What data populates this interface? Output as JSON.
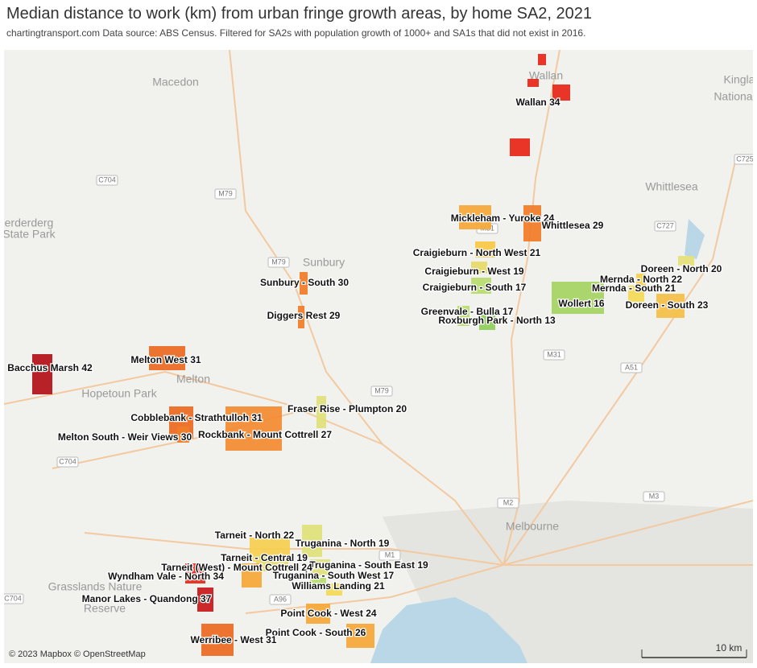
{
  "header": {
    "title": "Median distance to work (km) from urban fringe growth areas, by home SA2, 2021",
    "subtitle": "chartingtransport.com  Data source: ABS Census. Filtered for SA2s with population growth of 1000+ and SA1s that did not exist in 2016."
  },
  "map": {
    "areas": [
      {
        "label": "Wallan 34",
        "color": "#e8291c"
      },
      {
        "label": "Mickleham - Yuroke 24",
        "color": "#f6a93b"
      },
      {
        "label": "Whittlesea 29",
        "color": "#f07d2a"
      },
      {
        "label": "Craigieburn - North West 21",
        "color": "#f9c84a"
      },
      {
        "label": "Craigieburn - West 19",
        "color": "#e6d96a"
      },
      {
        "label": "Craigieburn - South 17",
        "color": "#b9dc70"
      },
      {
        "label": "Greenvale - Bulla 17",
        "color": "#b9dc70"
      },
      {
        "label": "Roxburgh Park - North 13",
        "color": "#8fcf5e"
      },
      {
        "label": "Wollert 16",
        "color": "#a6d465"
      },
      {
        "label": "Doreen - North 20",
        "color": "#e5e07a"
      },
      {
        "label": "Mernda - North 22",
        "color": "#f5cf52"
      },
      {
        "label": "Mernda - South 21",
        "color": "#f3d95a"
      },
      {
        "label": "Doreen - South 23",
        "color": "#f4c04a"
      },
      {
        "label": "Sunbury - South 30",
        "color": "#f07d2a"
      },
      {
        "label": "Diggers Rest 29",
        "color": "#f07d2a"
      },
      {
        "label": "Melton West 31",
        "color": "#ec6b25"
      },
      {
        "label": "Bacchus Marsh 42",
        "color": "#b5151e"
      },
      {
        "label": "Fraser Rise - Plumpton 20",
        "color": "#dfe07a"
      },
      {
        "label": "Cobblebank - Strathtulloh 31",
        "color": "#ec6b25"
      },
      {
        "label": "Rockbank - Mount Cottrell 27",
        "color": "#f28c35"
      },
      {
        "label": "Melton South - Weir Views 30",
        "color": "#f07d2a"
      },
      {
        "label": "Tarneit - North 22",
        "color": "#f5cf52"
      },
      {
        "label": "Truganina - North 19",
        "color": "#dfe07a"
      },
      {
        "label": "Tarneit - Central 19",
        "color": "#e6d96a"
      },
      {
        "label": "Truganina - South East 19",
        "color": "#dfe07a"
      },
      {
        "label": "Tarneit (West) - Mount Cottrell 24",
        "color": "#f6a93b"
      },
      {
        "label": "Wyndham Vale - North 34",
        "color": "#e8291c"
      },
      {
        "label": "Truganina - South West 17",
        "color": "#b9dc70"
      },
      {
        "label": "Williams Landing 21",
        "color": "#f3d95a"
      },
      {
        "label": "Manor Lakes - Quandong 37",
        "color": "#c81c20"
      },
      {
        "label": "Point Cook - West 24",
        "color": "#f6a93b"
      },
      {
        "label": "Point Cook - South 26",
        "color": "#f6a93b"
      },
      {
        "label": "Werribee - West 31",
        "color": "#ec6b25"
      }
    ],
    "places": [
      "Macedon",
      "Wallan",
      "Kingla",
      "National",
      "Whittlesea",
      "Sunbury",
      "Melton",
      "Hopetoun Park",
      "Melbourne",
      "erderderg",
      "State Park",
      "Grasslands Nature",
      "Reserve"
    ],
    "roads": [
      "C704",
      "M79",
      "M79",
      "C725",
      "C727",
      "M31",
      "M31",
      "A51",
      "M79",
      "C704",
      "M2",
      "M3",
      "M1",
      "A96",
      "C704"
    ],
    "attribution": "© 2023 Mapbox © OpenStreetMap",
    "scale_label": "10 km"
  }
}
